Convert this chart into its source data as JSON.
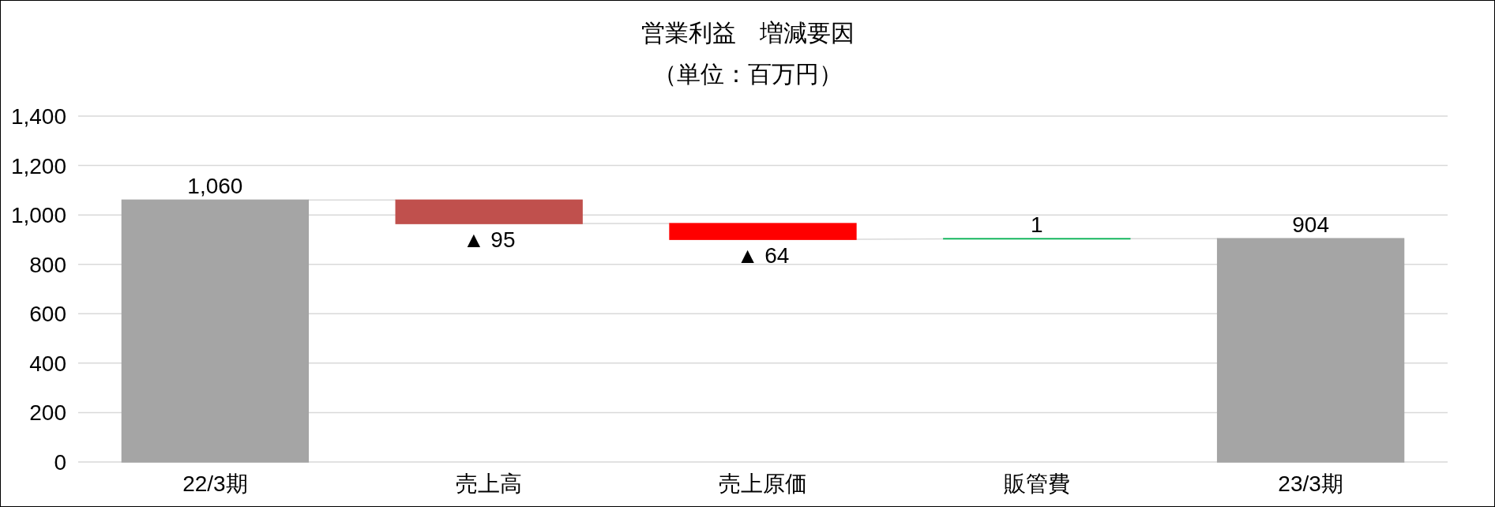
{
  "chart_data": {
    "type": "bar",
    "title": "営業利益　増減要因",
    "subtitle": "（単位：百万円）",
    "categories": [
      "22/3期",
      "売上高",
      "売上原価",
      "販管費",
      "23/3期"
    ],
    "values": [
      1060,
      -95,
      -64,
      1,
      904
    ],
    "base": [
      0,
      1060,
      965,
      903,
      0
    ],
    "colors": [
      "#a5a5a5",
      "#c0504d",
      "#ff0000",
      "#00b050",
      "#a5a5a5"
    ],
    "value_labels": [
      "1,060",
      "▲ 95",
      "▲ 64",
      "1",
      "904"
    ],
    "ylim": [
      0,
      1400
    ],
    "yticks": [
      0,
      200,
      400,
      600,
      800,
      {
        "value": 1000,
        "label": "1,000"
      },
      {
        "value": 1200,
        "label": "1,200"
      },
      {
        "value": 1400,
        "label": "1,400"
      }
    ],
    "grid": "y"
  }
}
